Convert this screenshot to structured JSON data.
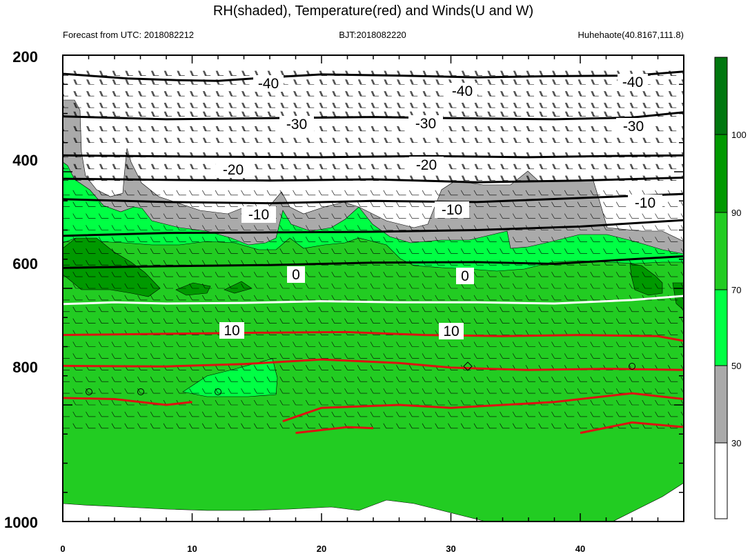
{
  "chart_data": {
    "type": "contour",
    "title": "RH(shaded), Temperature(red) and Winds(U and W)",
    "subtitle_left": "Forecast from UTC: 2018082212",
    "subtitle_center": "BJT:2018082220",
    "subtitle_right": "Huhehaote(40.8167,111.8)",
    "xlim": [
      0,
      48
    ],
    "ylim": [
      200,
      1000
    ],
    "y_reversed": true,
    "x_ticks": [
      "0",
      "10",
      "20",
      "30",
      "40"
    ],
    "y_ticks": [
      "200",
      "400",
      "600",
      "800",
      "1000"
    ],
    "rh_levels": [
      30,
      50,
      70,
      90,
      100
    ],
    "rh_colors": [
      "#ffffff",
      "#aaaaaa",
      "#00ff44",
      "#22cc22",
      "#009900",
      "#00770f"
    ],
    "colorbar_labels": [
      "100",
      "90",
      "70",
      "50",
      "30"
    ],
    "wind_barbs": "present",
    "temperature_contours": [
      {
        "label": "-40",
        "points": [
          [
            0,
            232
          ],
          [
            5,
            240
          ],
          [
            9,
            243
          ],
          [
            12,
            244
          ],
          [
            16,
            238
          ],
          [
            20,
            233
          ],
          [
            26,
            235
          ],
          [
            32,
            238
          ],
          [
            38,
            236
          ],
          [
            44,
            235
          ],
          [
            48,
            228
          ]
        ]
      },
      {
        "label": "-30",
        "points": [
          [
            0,
            305
          ],
          [
            8,
            310
          ],
          [
            16,
            308
          ],
          [
            24,
            306
          ],
          [
            30,
            308
          ],
          [
            38,
            310
          ],
          [
            44,
            307
          ],
          [
            48,
            298
          ]
        ]
      },
      {
        "label": "-20",
        "points": [
          [
            0,
            372
          ],
          [
            10,
            374
          ],
          [
            20,
            375
          ],
          [
            28,
            373
          ],
          [
            36,
            375
          ],
          [
            42,
            373
          ],
          [
            48,
            372
          ]
        ]
      },
      {
        "label": "-20b",
        "points": [
          [
            0,
            412
          ],
          [
            8,
            414
          ],
          [
            16,
            415
          ],
          [
            24,
            413
          ],
          [
            32,
            418
          ],
          [
            40,
            415
          ],
          [
            48,
            410
          ]
        ]
      },
      {
        "label": "-10",
        "points": [
          [
            0,
            447
          ],
          [
            8,
            452
          ],
          [
            16,
            454
          ],
          [
            24,
            450
          ],
          [
            32,
            452
          ],
          [
            40,
            445
          ],
          [
            48,
            438
          ]
        ]
      },
      {
        "label": "-10",
        "points": [
          [
            0,
            510
          ],
          [
            8,
            505
          ],
          [
            16,
            504
          ],
          [
            24,
            503
          ],
          [
            32,
            500
          ],
          [
            40,
            494
          ],
          [
            48,
            483
          ]
        ]
      },
      {
        "label": "-10b",
        "points": [
          [
            0,
            565
          ],
          [
            8,
            562
          ],
          [
            16,
            560
          ],
          [
            24,
            556
          ],
          [
            32,
            555
          ],
          [
            38,
            558
          ],
          [
            44,
            550
          ],
          [
            48,
            545
          ]
        ]
      },
      {
        "label": "0",
        "points": [
          [
            0,
            627
          ],
          [
            4,
            624
          ],
          [
            8,
            626
          ],
          [
            14,
            625
          ],
          [
            20,
            622
          ],
          [
            26,
            624
          ],
          [
            32,
            624
          ],
          [
            38,
            626
          ],
          [
            44,
            620
          ],
          [
            48,
            613
          ]
        ]
      },
      {
        "label": "10a",
        "points": [
          [
            0,
            680
          ],
          [
            8,
            678
          ],
          [
            16,
            676
          ],
          [
            22,
            675
          ],
          [
            28,
            680
          ],
          [
            34,
            682
          ],
          [
            40,
            680
          ],
          [
            46,
            682
          ],
          [
            48,
            690
          ]
        ]
      },
      {
        "label": "10",
        "points": [
          [
            0,
            733
          ],
          [
            8,
            734
          ],
          [
            14,
            730
          ],
          [
            20,
            722
          ],
          [
            26,
            728
          ],
          [
            30,
            736
          ],
          [
            36,
            740
          ],
          [
            42,
            738
          ],
          [
            48,
            740
          ]
        ]
      },
      {
        "label": "10b",
        "points": [
          [
            0,
            788
          ],
          [
            4,
            790
          ],
          [
            8,
            800
          ],
          [
            10,
            795
          ]
        ]
      },
      {
        "label": "10c",
        "points": [
          [
            17,
            828
          ],
          [
            20,
            805
          ],
          [
            26,
            800
          ],
          [
            30,
            805
          ],
          [
            34,
            800
          ],
          [
            38,
            795
          ],
          [
            44,
            780
          ],
          [
            48,
            790
          ]
        ]
      },
      {
        "label": "10d",
        "points": [
          [
            18,
            848
          ],
          [
            22,
            838
          ],
          [
            24,
            840
          ]
        ]
      },
      {
        "label": "10e",
        "points": [
          [
            40,
            848
          ],
          [
            44,
            830
          ],
          [
            48,
            838
          ]
        ]
      }
    ],
    "grid": false
  }
}
